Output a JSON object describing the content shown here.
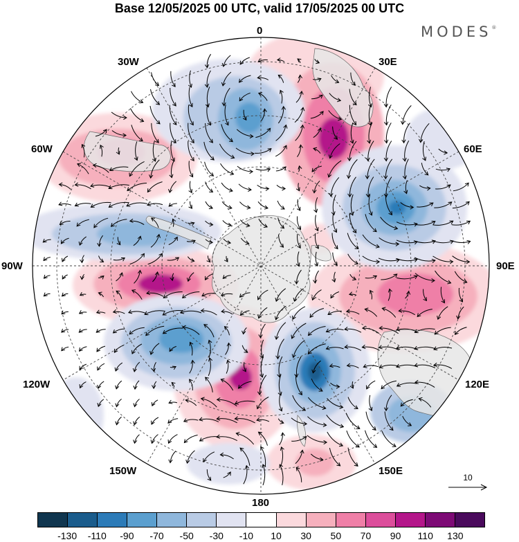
{
  "title": "Base 12/05/2025 00 UTC, valid 17/05/2025 00 UTC",
  "logo": "MODES",
  "logo_mark": "®",
  "longitude_labels": {
    "n0": "0",
    "n30e": "30E",
    "n60e": "60E",
    "n90e": "90E",
    "n120e": "120E",
    "n150e": "150E",
    "n180": "180",
    "n150w": "150W",
    "n120w": "120W",
    "n90w": "90W",
    "n60w": "60W",
    "n30w": "30W"
  },
  "reference_vector": {
    "value": "10"
  },
  "colorbar": {
    "ticks": [
      "-130",
      "-110",
      "-90",
      "-70",
      "-50",
      "-30",
      "-10",
      "10",
      "30",
      "50",
      "70",
      "90",
      "110",
      "130"
    ],
    "colors": [
      "#10364f",
      "#1a5c8c",
      "#2c7bb8",
      "#5b9fcf",
      "#8fb7dc",
      "#b9cbe5",
      "#e1e3f1",
      "#ffffff",
      "#fbd9dd",
      "#f6b0bd",
      "#ef7fa7",
      "#dc4e9b",
      "#b4168a",
      "#7d0a75",
      "#4a0a5c"
    ]
  },
  "map_colors": {
    "land": "#e6e6e6",
    "land_edge": "#6a6a6a",
    "arrow": "#000000",
    "grid": "#444444"
  }
}
